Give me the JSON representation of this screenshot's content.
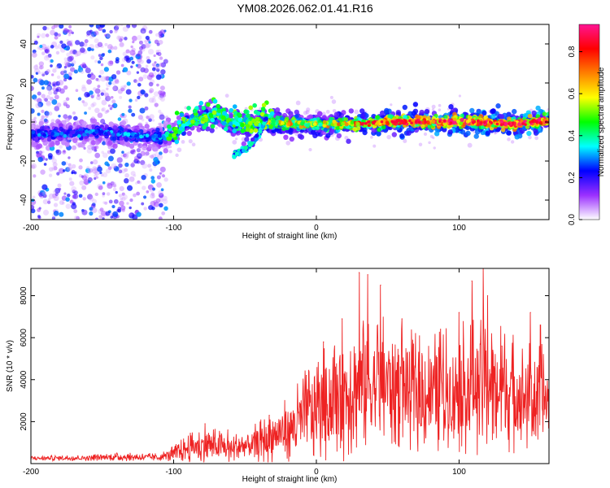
{
  "title": "YM08.2026.062.01.41.R16",
  "chart_data": [
    {
      "type": "heatmap",
      "xlabel": "Height of straight line (km)",
      "ylabel": "Frequency (Hz)",
      "xlim": [
        -200,
        163
      ],
      "ylim": [
        -50,
        50
      ],
      "xticks": [
        -200,
        -100,
        0,
        100
      ],
      "yticks": [
        -40,
        -20,
        0,
        20,
        40
      ],
      "xtick_labels": [
        "-200",
        "-100",
        "0",
        "100"
      ],
      "ytick_labels": [
        "-40",
        "-20",
        "0",
        "20",
        "40"
      ],
      "colorbar": {
        "label": "Normalized spectral amplitude",
        "range": [
          0,
          0.93
        ],
        "ticks": [
          0.0,
          0.2,
          0.4,
          0.6,
          0.8
        ],
        "tick_labels": [
          "0.0",
          "0.2",
          "0.4",
          "0.6",
          "0.8"
        ],
        "colors": [
          "#ffffff",
          "#9b30ff",
          "#0000ff",
          "#00ffff",
          "#00ff00",
          "#ffff00",
          "#ff8000",
          "#ff0000",
          "#ff1493"
        ]
      },
      "noise_region_x": [
        -200,
        -105
      ],
      "ridge": [
        {
          "x": -195,
          "f": -6
        },
        {
          "x": -170,
          "f": -6
        },
        {
          "x": -150,
          "f": -5
        },
        {
          "x": -125,
          "f": -7
        },
        {
          "x": -110,
          "f": -8
        },
        {
          "x": -100,
          "f": -7
        },
        {
          "x": -90,
          "f": 0
        },
        {
          "x": -80,
          "f": 2
        },
        {
          "x": -70,
          "f": 4
        },
        {
          "x": -60,
          "f": 0
        },
        {
          "x": -50,
          "f": -2
        },
        {
          "x": -40,
          "f": 0
        },
        {
          "x": -30,
          "f": 0
        },
        {
          "x": -20,
          "f": -1
        },
        {
          "x": 0,
          "f": -1
        },
        {
          "x": 20,
          "f": -1
        },
        {
          "x": 50,
          "f": 0
        },
        {
          "x": 80,
          "f": 0
        },
        {
          "x": 110,
          "f": 0
        },
        {
          "x": 140,
          "f": -1
        },
        {
          "x": 163,
          "f": 1
        }
      ],
      "secondary_branch": [
        {
          "x": -58,
          "f": -17
        },
        {
          "x": -48,
          "f": -13
        },
        {
          "x": -40,
          "f": -6
        },
        {
          "x": -35,
          "f": 2
        }
      ],
      "amplitude_trend": [
        {
          "x": -200,
          "a": 0.25
        },
        {
          "x": -105,
          "a": 0.3
        },
        {
          "x": -90,
          "a": 0.45
        },
        {
          "x": -50,
          "a": 0.5
        },
        {
          "x": -30,
          "a": 0.6
        },
        {
          "x": 0,
          "a": 0.55
        },
        {
          "x": 40,
          "a": 0.7
        },
        {
          "x": 80,
          "a": 0.8
        },
        {
          "x": 163,
          "a": 0.85
        }
      ]
    },
    {
      "type": "line",
      "xlabel": "Height of straight line (km)",
      "ylabel": "SNR (10 * v/v)",
      "xlim": [
        -200,
        163
      ],
      "ylim": [
        0,
        9300
      ],
      "xticks": [
        -200,
        -100,
        0,
        100
      ],
      "yticks": [
        2000,
        4000,
        6000,
        8000
      ],
      "xtick_labels": [
        "-200",
        "-100",
        "0",
        "100"
      ],
      "ytick_labels": [
        "2000",
        "4000",
        "6000",
        "8000"
      ],
      "color": "#ee2222",
      "series": [
        {
          "name": "SNR",
          "envelope": [
            {
              "x": -200,
              "mean": 250,
              "spread": 120
            },
            {
              "x": -160,
              "mean": 280,
              "spread": 150
            },
            {
              "x": -140,
              "mean": 320,
              "spread": 200
            },
            {
              "x": -110,
              "mean": 300,
              "spread": 200
            },
            {
              "x": -100,
              "mean": 450,
              "spread": 400
            },
            {
              "x": -90,
              "mean": 750,
              "spread": 700
            },
            {
              "x": -75,
              "mean": 900,
              "spread": 900
            },
            {
              "x": -60,
              "mean": 700,
              "spread": 700
            },
            {
              "x": -45,
              "mean": 900,
              "spread": 900
            },
            {
              "x": -30,
              "mean": 1300,
              "spread": 1300
            },
            {
              "x": -18,
              "mean": 1700,
              "spread": 1600
            },
            {
              "x": -5,
              "mean": 2400,
              "spread": 2500
            },
            {
              "x": 10,
              "mean": 3000,
              "spread": 3000
            },
            {
              "x": 30,
              "mean": 3800,
              "spread": 3600
            },
            {
              "x": 55,
              "mean": 3800,
              "spread": 3200
            },
            {
              "x": 75,
              "mean": 3300,
              "spread": 2800
            },
            {
              "x": 100,
              "mean": 3600,
              "spread": 3200
            },
            {
              "x": 120,
              "mean": 3800,
              "spread": 3400
            },
            {
              "x": 145,
              "mean": 3200,
              "spread": 2800
            },
            {
              "x": 163,
              "mean": 3000,
              "spread": 2600
            }
          ],
          "peaks": [
            {
              "x": -78,
              "y": 1900
            },
            {
              "x": -62,
              "y": 1600
            },
            {
              "x": -33,
              "y": 2300
            },
            {
              "x": -7,
              "y": 4200
            },
            {
              "x": 5,
              "y": 5800
            },
            {
              "x": 18,
              "y": 6900
            },
            {
              "x": 30,
              "y": 9100
            },
            {
              "x": 36,
              "y": 9000
            },
            {
              "x": 45,
              "y": 8500
            },
            {
              "x": 60,
              "y": 6900
            },
            {
              "x": 87,
              "y": 6400
            },
            {
              "x": 100,
              "y": 7200
            },
            {
              "x": 109,
              "y": 8700
            },
            {
              "x": 117,
              "y": 9300
            },
            {
              "x": 120,
              "y": 8000
            },
            {
              "x": 130,
              "y": 5600
            },
            {
              "x": 150,
              "y": 7200
            },
            {
              "x": 157,
              "y": 6600
            }
          ]
        }
      ]
    }
  ]
}
